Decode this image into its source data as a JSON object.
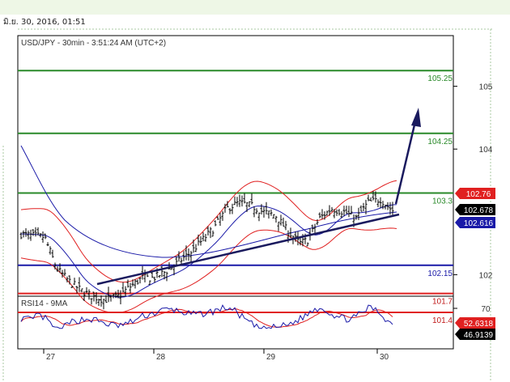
{
  "datetime": "มิ.ย. 30, 2016, 01:51",
  "chart_data": {
    "type": "candlestick",
    "title": "USD/JPY - 30min - 3:51:24 AM (UTC+2)",
    "y_ticks": [
      {
        "label": "105",
        "value": 105
      },
      {
        "label": "104",
        "value": 104
      },
      {
        "label": "102",
        "value": 102
      }
    ],
    "x_ticks": [
      "27",
      "28",
      "29",
      "30"
    ],
    "levels": [
      {
        "label": "105.25",
        "value": 105.25,
        "color": "#2a8a2a",
        "label_color": "#2a8a2a"
      },
      {
        "label": "104.25",
        "value": 104.25,
        "color": "#2a8a2a",
        "label_color": "#2a8a2a"
      },
      {
        "label": "103.3",
        "value": 103.3,
        "color": "#2a8a2a",
        "label_color": "#2a8a2a"
      },
      {
        "label": "102.15",
        "value": 102.15,
        "color": "#1a1aa8",
        "label_color": "#1a1aa8"
      },
      {
        "label": "101.7",
        "value": 101.7,
        "color": "#e02020",
        "label_color": "#c01818"
      },
      {
        "label": "101.4",
        "value": 101.4,
        "color": "#e02020",
        "label_color": "#c01818"
      }
    ],
    "price_tags": [
      {
        "label": "102.76",
        "bg": "#e02020",
        "color": "#ffffff"
      },
      {
        "label": "102.678",
        "bg": "#000000",
        "color": "#ffffff"
      },
      {
        "label": "102.616",
        "bg": "#1a1aa8",
        "color": "#ffffff"
      }
    ],
    "rsi": {
      "title": "RSI14 - 9MA",
      "tick": "70",
      "rsi_value": "46.9139",
      "ma_value": "52.6318",
      "colors": {
        "rsi": "#1a1aa8",
        "ma": "#e02020"
      }
    }
  }
}
